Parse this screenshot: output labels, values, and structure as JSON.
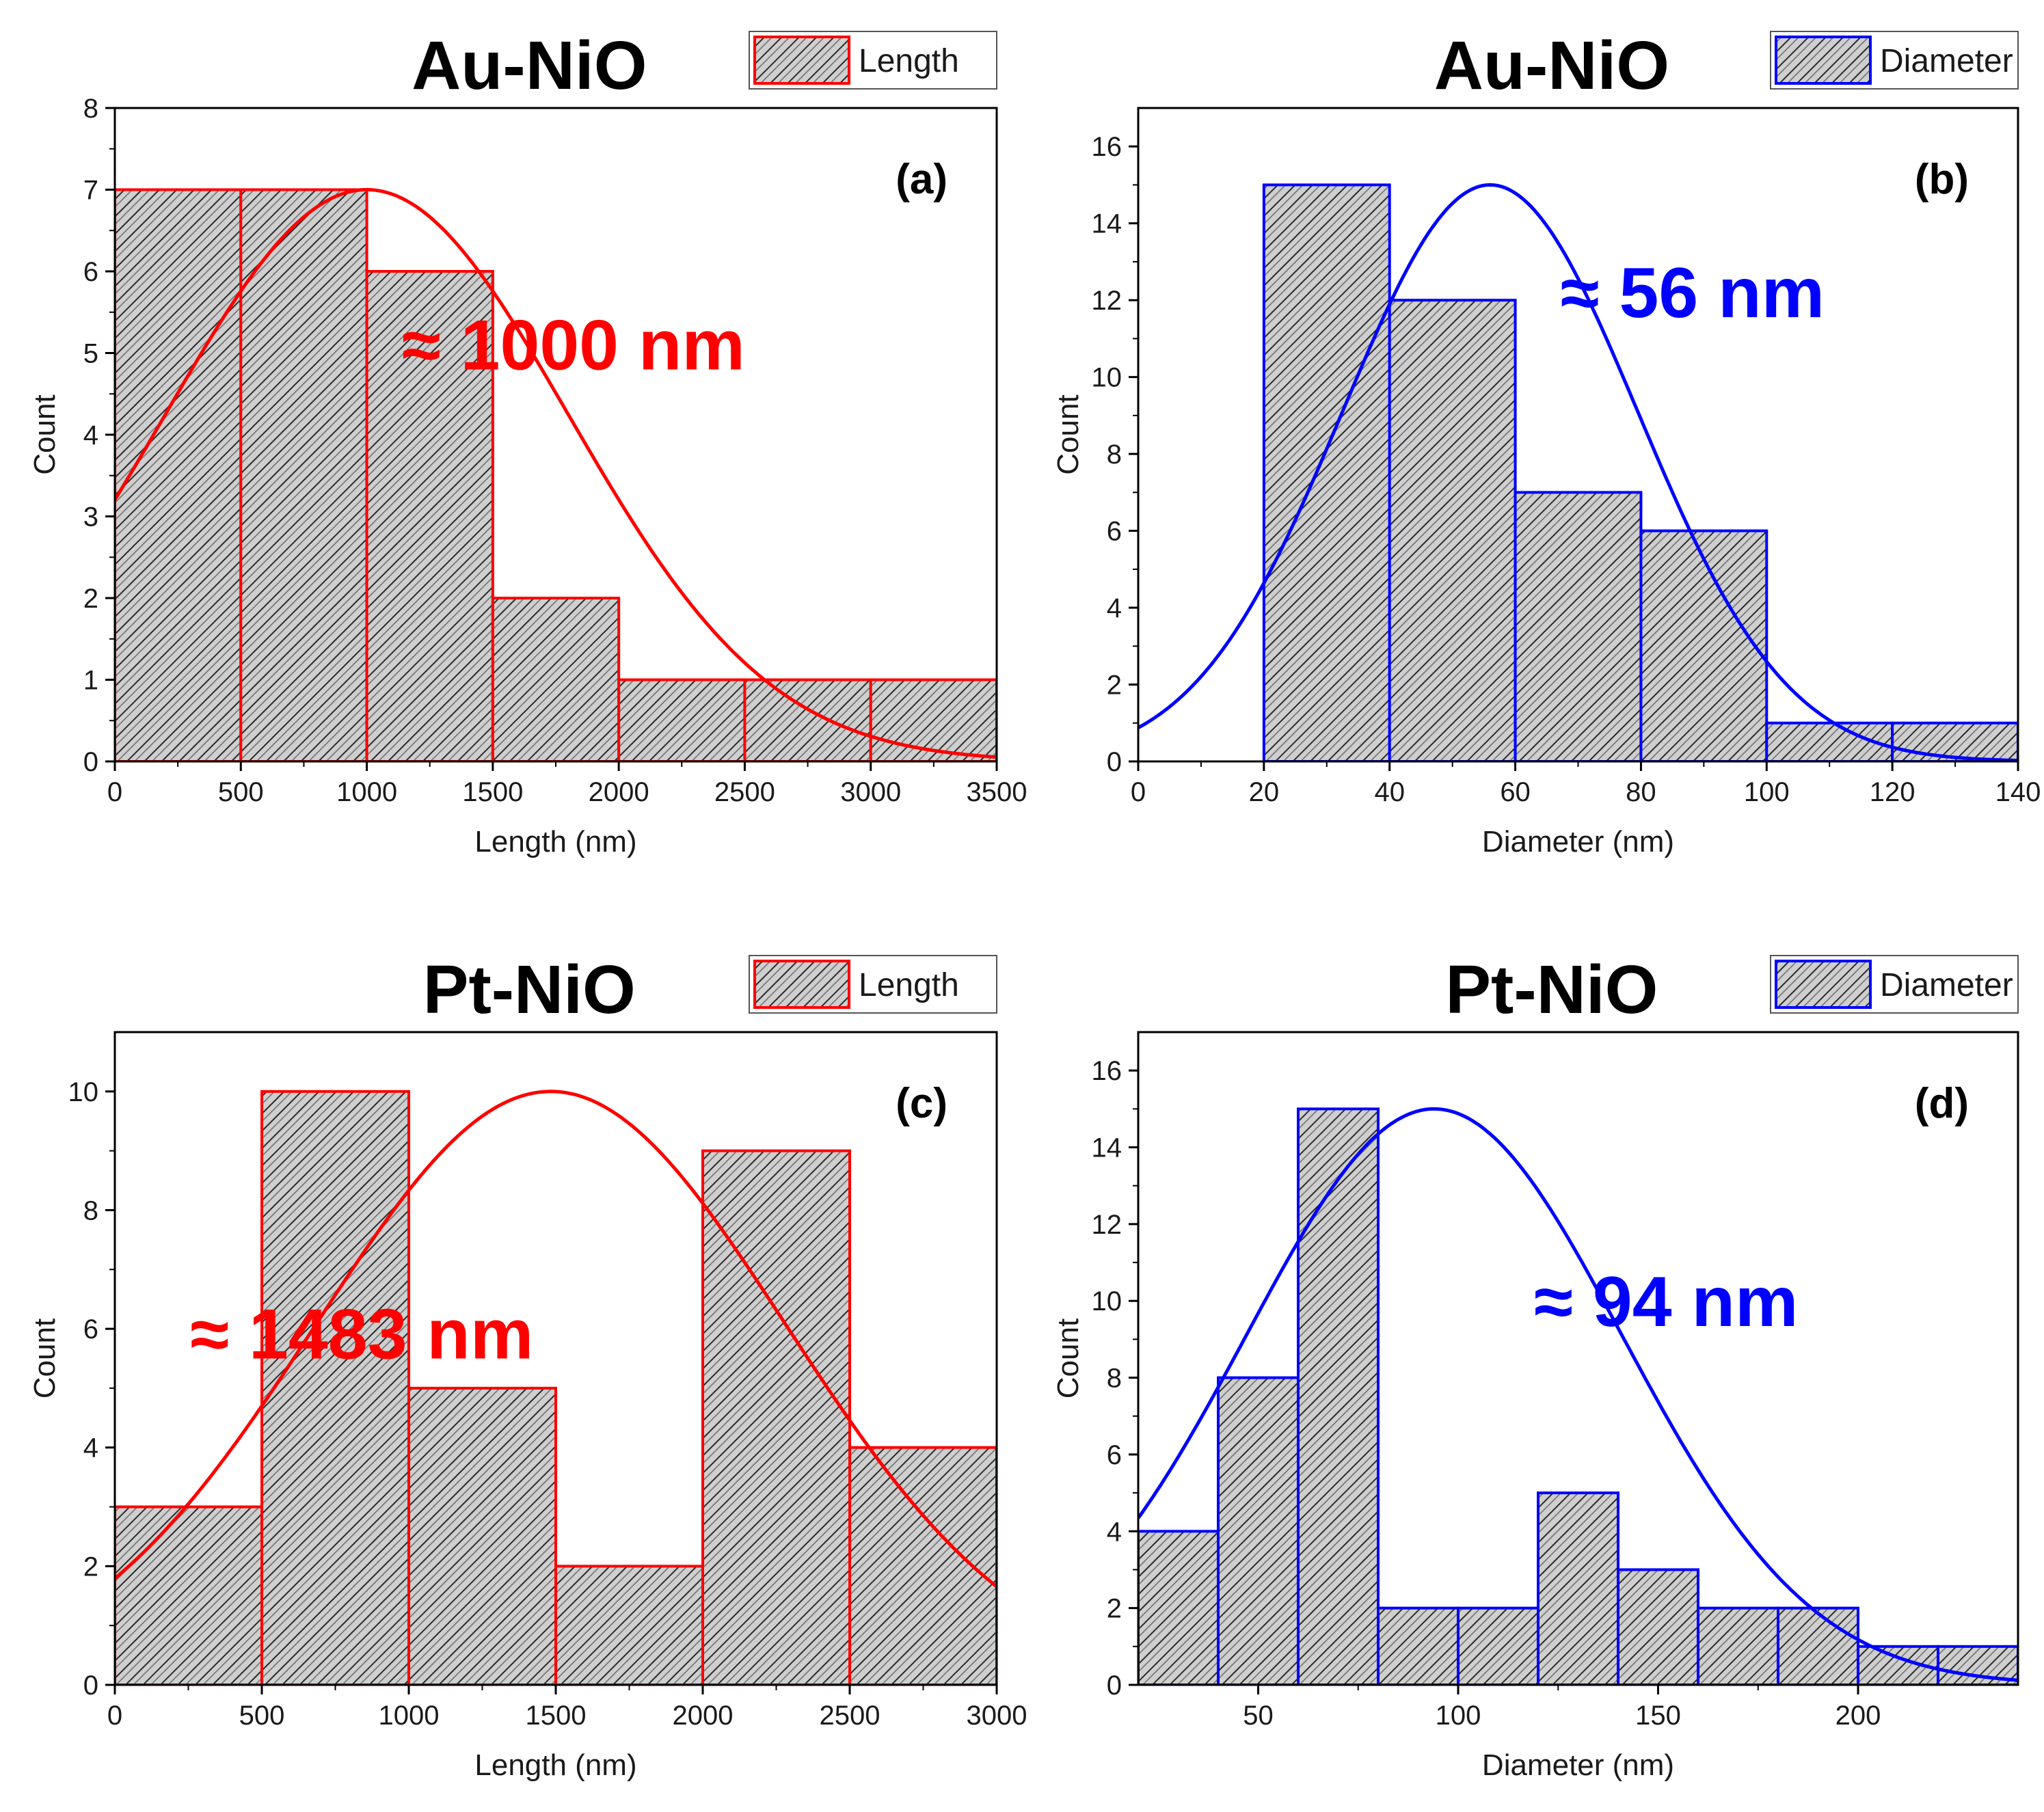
{
  "chart_data": [
    {
      "type": "bar",
      "panel": "(a)",
      "title": "Au-NiO",
      "xlabel": "Length (nm)",
      "ylabel": "Count",
      "xlim": [
        0,
        3500
      ],
      "ylim": [
        0,
        8
      ],
      "xticks": [
        0,
        500,
        1000,
        1500,
        2000,
        2500,
        3000,
        3500
      ],
      "yticks": [
        0,
        1,
        2,
        3,
        4,
        5,
        6,
        7,
        8
      ],
      "bins": [
        [
          0,
          500
        ],
        [
          500,
          1000
        ],
        [
          1000,
          1500
        ],
        [
          1500,
          2000
        ],
        [
          2000,
          2500
        ],
        [
          2500,
          3000
        ],
        [
          3000,
          3500
        ]
      ],
      "values": [
        7,
        7,
        6,
        2,
        1,
        1,
        1
      ],
      "fit": {
        "type": "gaussian",
        "center": 1000,
        "peak": 7,
        "sigma": 800
      },
      "annotation": "≈ 1000 nm",
      "legend": {
        "label": "Length",
        "position": "top-right"
      },
      "color": "#ff0000",
      "hatch": "diagonal"
    },
    {
      "type": "bar",
      "panel": "(b)",
      "title": "Au-NiO",
      "xlabel": "Diameter (nm)",
      "ylabel": "Count",
      "xlim": [
        0,
        140
      ],
      "ylim": [
        0,
        17
      ],
      "xticks": [
        0,
        20,
        40,
        60,
        80,
        100,
        120,
        140
      ],
      "yticks": [
        0,
        2,
        4,
        6,
        8,
        10,
        12,
        14,
        16
      ],
      "bins": [
        [
          20,
          40
        ],
        [
          40,
          60
        ],
        [
          60,
          80
        ],
        [
          80,
          100
        ],
        [
          100,
          120
        ],
        [
          120,
          140
        ]
      ],
      "values": [
        15,
        12,
        7,
        6,
        1,
        1
      ],
      "fit": {
        "type": "gaussian",
        "center": 56,
        "peak": 15,
        "sigma": 23.5
      },
      "annotation": "≈ 56 nm",
      "legend": {
        "label": "Diameter",
        "position": "top-right"
      },
      "color": "#0000ff",
      "hatch": "diagonal"
    },
    {
      "type": "bar",
      "panel": "(c)",
      "title": "Pt-NiO",
      "xlabel": "Length (nm)",
      "ylabel": "Count",
      "xlim": [
        0,
        3000
      ],
      "ylim": [
        0,
        11
      ],
      "xticks": [
        0,
        500,
        1000,
        1500,
        2000,
        2500,
        3000
      ],
      "yticks": [
        0,
        2,
        4,
        6,
        8,
        10
      ],
      "bins": [
        [
          0,
          500
        ],
        [
          500,
          1000
        ],
        [
          1000,
          1500
        ],
        [
          1500,
          2000
        ],
        [
          2000,
          2500
        ],
        [
          2500,
          3000
        ]
      ],
      "values": [
        3,
        10,
        5,
        2,
        9,
        4
      ],
      "fit": {
        "type": "gaussian",
        "center": 1483,
        "peak": 10,
        "sigma": 800
      },
      "annotation": "≈ 1483 nm",
      "legend": {
        "label": "Length",
        "position": "top-right"
      },
      "color": "#ff0000",
      "hatch": "diagonal"
    },
    {
      "type": "bar",
      "panel": "(d)",
      "title": "Pt-NiO",
      "xlabel": "Diameter (nm)",
      "ylabel": "Count",
      "xlim": [
        20,
        240
      ],
      "ylim": [
        0,
        17
      ],
      "xticks": [
        50,
        100,
        150,
        200
      ],
      "yticks": [
        0,
        2,
        4,
        6,
        8,
        10,
        12,
        14,
        16
      ],
      "bins": [
        [
          20,
          40
        ],
        [
          40,
          60
        ],
        [
          60,
          80
        ],
        [
          80,
          100
        ],
        [
          100,
          120
        ],
        [
          120,
          140
        ],
        [
          140,
          160
        ],
        [
          160,
          180
        ],
        [
          180,
          200
        ],
        [
          200,
          220
        ],
        [
          220,
          240
        ]
      ],
      "values": [
        4,
        8,
        15,
        2,
        2,
        5,
        3,
        2,
        2,
        1,
        1
      ],
      "fit": {
        "type": "gaussian",
        "center": 94,
        "peak": 15,
        "sigma": 47
      },
      "annotation": "≈ 94 nm",
      "legend": {
        "label": "Diameter",
        "position": "top-right"
      },
      "color": "#0000ff",
      "hatch": "diagonal"
    }
  ]
}
